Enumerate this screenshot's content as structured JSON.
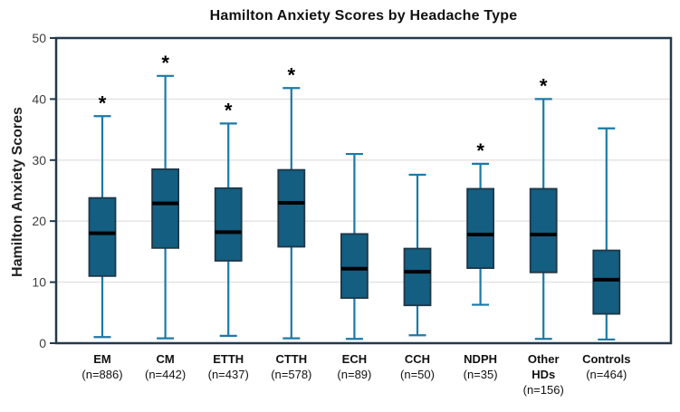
{
  "chart_data": {
    "type": "box",
    "title": "Hamilton Anxiety Scores by Headache Type",
    "ylabel": "Hamilton Anxiety Scores",
    "xlabel": "",
    "ylim": [
      0,
      50
    ],
    "yticks": [
      0,
      10,
      20,
      30,
      40,
      50
    ],
    "grid": "horizontal-light",
    "legend": "none",
    "significance_marker": "*",
    "categories": [
      {
        "name": "EM",
        "name_lines": [
          "EM"
        ],
        "n_label": "(n=886)",
        "n": 886,
        "whisker_low": 1.0,
        "q1": 11.0,
        "median": 18.0,
        "q3": 23.8,
        "whisker_high": 37.2,
        "significant": true
      },
      {
        "name": "CM",
        "name_lines": [
          "CM"
        ],
        "n_label": "(n=442)",
        "n": 442,
        "whisker_low": 0.8,
        "q1": 15.6,
        "median": 22.9,
        "q3": 28.5,
        "whisker_high": 43.8,
        "significant": true
      },
      {
        "name": "ETTH",
        "name_lines": [
          "ETTH"
        ],
        "n_label": "(n=437)",
        "n": 437,
        "whisker_low": 1.2,
        "q1": 13.5,
        "median": 18.2,
        "q3": 25.4,
        "whisker_high": 36.0,
        "significant": true
      },
      {
        "name": "CTTH",
        "name_lines": [
          "CTTH"
        ],
        "n_label": "(n=578)",
        "n": 578,
        "whisker_low": 0.8,
        "q1": 15.8,
        "median": 23.0,
        "q3": 28.4,
        "whisker_high": 41.8,
        "significant": true
      },
      {
        "name": "ECH",
        "name_lines": [
          "ECH"
        ],
        "n_label": "(n=89)",
        "n": 89,
        "whisker_low": 0.7,
        "q1": 7.4,
        "median": 12.2,
        "q3": 17.9,
        "whisker_high": 31.0,
        "significant": false
      },
      {
        "name": "CCH",
        "name_lines": [
          "CCH"
        ],
        "n_label": "(n=50)",
        "n": 50,
        "whisker_low": 1.3,
        "q1": 6.2,
        "median": 11.7,
        "q3": 15.5,
        "whisker_high": 27.6,
        "significant": false
      },
      {
        "name": "NDPH",
        "name_lines": [
          "NDPH"
        ],
        "n_label": "(n=35)",
        "n": 35,
        "whisker_low": 6.3,
        "q1": 12.3,
        "median": 17.8,
        "q3": 25.3,
        "whisker_high": 29.4,
        "significant": true
      },
      {
        "name": "Other HDs",
        "name_lines": [
          "Other",
          "HDs"
        ],
        "n_label": "(n=156)",
        "n": 156,
        "whisker_low": 0.7,
        "q1": 11.6,
        "median": 17.8,
        "q3": 25.3,
        "whisker_high": 40.0,
        "significant": true
      },
      {
        "name": "Controls",
        "name_lines": [
          "Controls"
        ],
        "n_label": "(n=464)",
        "n": 464,
        "whisker_low": 0.6,
        "q1": 4.8,
        "median": 10.4,
        "q3": 15.2,
        "whisker_high": 35.2,
        "significant": false
      }
    ],
    "colors": {
      "box_fill": "#135e81",
      "box_stroke": "#1f3747",
      "median": "#000000",
      "whisker": "#1a7aa8",
      "frame": "#24394b",
      "grid": "#e2e2e2",
      "tick_text": "#3d3d3d",
      "label_text": "#111111",
      "asterisk": "#000000",
      "background": "#ffffff"
    }
  }
}
